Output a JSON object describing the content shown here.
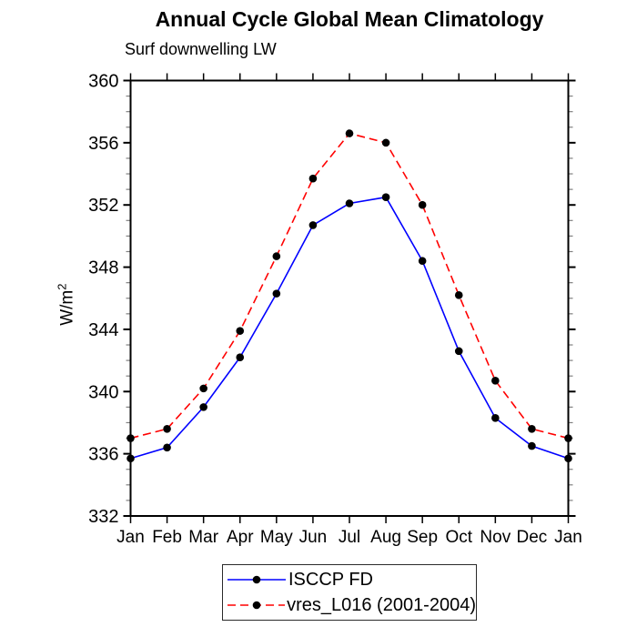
{
  "chart_data": {
    "type": "line",
    "title": "Annual Cycle Global Mean Climatology",
    "subtitle": "Surf downwelling LW",
    "ylabel_base": "W/m",
    "ylabel_sup": "2",
    "xlabel": "",
    "categories": [
      "Jan",
      "Feb",
      "Mar",
      "Apr",
      "May",
      "Jun",
      "Jul",
      "Aug",
      "Sep",
      "Oct",
      "Nov",
      "Dec",
      "Jan"
    ],
    "ylim": [
      332,
      360
    ],
    "ymajor_ticks": [
      332,
      336,
      340,
      344,
      348,
      352,
      356,
      360
    ],
    "yminor_step": 1,
    "grid": false,
    "legend_position": "bottom-center",
    "axis_color": "#000000",
    "series": [
      {
        "name": "ISCCP FD",
        "color": "#0000ff",
        "line_style": "solid",
        "marker": "filled-circle",
        "marker_color": "#000000",
        "values": [
          335.7,
          336.4,
          339.0,
          342.2,
          346.3,
          350.7,
          352.1,
          352.5,
          348.4,
          342.6,
          338.3,
          336.5,
          335.7
        ]
      },
      {
        "name": "vres_L016 (2001-2004)",
        "color": "#ff0000",
        "line_style": "dashed",
        "marker": "filled-circle",
        "marker_color": "#000000",
        "values": [
          337.0,
          337.6,
          340.2,
          343.9,
          348.7,
          353.7,
          356.6,
          356.0,
          352.0,
          346.2,
          340.7,
          337.6,
          337.0
        ]
      }
    ]
  }
}
